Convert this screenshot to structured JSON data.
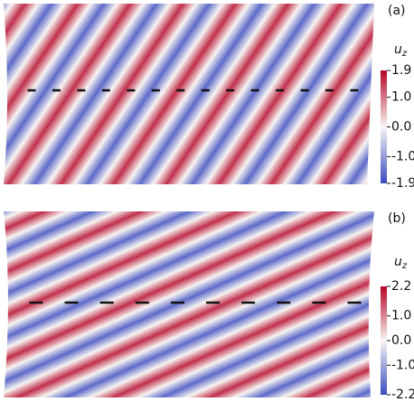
{
  "chart_data": [
    {
      "type": "field",
      "panel_label": "(a)",
      "colorbar_label": "u",
      "colorbar_label_sub": "z",
      "colormap": [
        "#b40426",
        "#f7f5f2",
        "#3b4cc0"
      ],
      "colorbar_lim": [
        -1.9,
        1.9
      ],
      "colorbar_ticks": [
        1.9,
        {
          "value": 1,
          "label": "1.0"
        },
        {
          "value": 0,
          "label": "0.0"
        },
        {
          "value": -1,
          "label": "-1.0"
        },
        -1.9
      ]
    },
    {
      "type": "field",
      "panel_label": "(b)",
      "colorbar_label": "u",
      "colorbar_label_sub": "z",
      "colormap": [
        "#b40426",
        "#f7f5f2",
        "#3b4cc0"
      ],
      "colorbar_lim": [
        -2.2,
        2.2
      ],
      "colorbar_ticks": [
        2.2,
        {
          "value": 1,
          "label": "1.0"
        },
        {
          "value": 0,
          "label": "0.0"
        },
        {
          "value": -1,
          "label": "-1.0"
        },
        -2.2
      ]
    }
  ]
}
